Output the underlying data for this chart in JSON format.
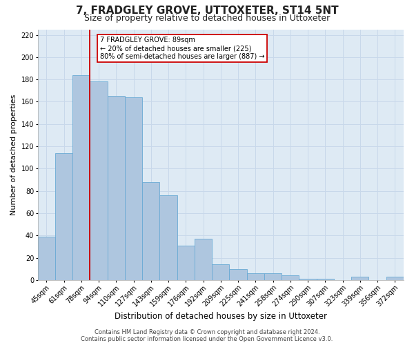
{
  "title": "7, FRADGLEY GROVE, UTTOXETER, ST14 5NT",
  "subtitle": "Size of property relative to detached houses in Uttoxeter",
  "xlabel": "Distribution of detached houses by size in Uttoxeter",
  "ylabel": "Number of detached properties",
  "bar_labels": [
    "45sqm",
    "61sqm",
    "78sqm",
    "94sqm",
    "110sqm",
    "127sqm",
    "143sqm",
    "159sqm",
    "176sqm",
    "192sqm",
    "209sqm",
    "225sqm",
    "241sqm",
    "258sqm",
    "274sqm",
    "290sqm",
    "307sqm",
    "323sqm",
    "339sqm",
    "356sqm",
    "372sqm"
  ],
  "bar_values": [
    39,
    114,
    184,
    178,
    165,
    164,
    88,
    76,
    31,
    37,
    14,
    10,
    6,
    6,
    4,
    1,
    1,
    0,
    3,
    0,
    3
  ],
  "bar_color": "#aec6df",
  "bar_edge_color": "#6aaad4",
  "grid_color": "#c8d8ea",
  "bg_color": "#deeaf4",
  "vline_color": "#cc0000",
  "vline_x": 2.5,
  "annotation_line1": "7 FRADGLEY GROVE: 89sqm",
  "annotation_line2": "← 20% of detached houses are smaller (225)",
  "annotation_line3": "80% of semi-detached houses are larger (887) →",
  "annotation_box_color": "#ffffff",
  "annotation_box_edge": "#cc0000",
  "ylim": [
    0,
    225
  ],
  "yticks": [
    0,
    20,
    40,
    60,
    80,
    100,
    120,
    140,
    160,
    180,
    200,
    220
  ],
  "footer_line1": "Contains HM Land Registry data © Crown copyright and database right 2024.",
  "footer_line2": "Contains public sector information licensed under the Open Government Licence v3.0.",
  "title_fontsize": 11,
  "subtitle_fontsize": 9,
  "xlabel_fontsize": 8.5,
  "ylabel_fontsize": 8,
  "tick_fontsize": 7,
  "annotation_fontsize": 7,
  "footer_fontsize": 6
}
